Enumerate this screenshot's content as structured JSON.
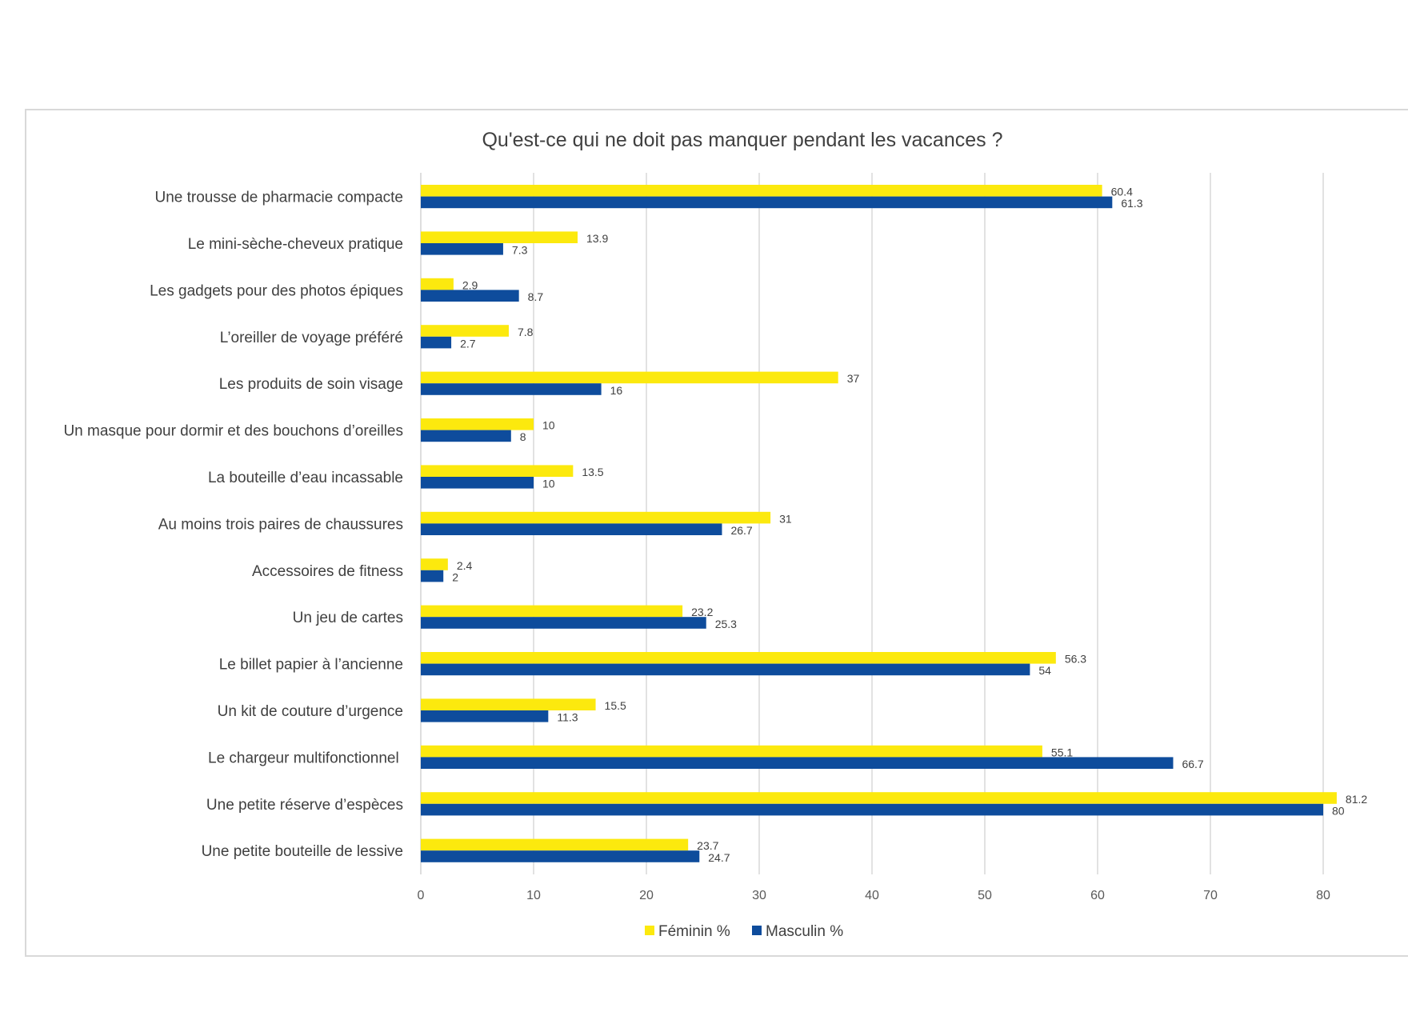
{
  "chart_data": {
    "type": "bar",
    "orientation": "horizontal",
    "title": "Qu'est-ce qui ne doit pas manquer pendant les vacances ?",
    "xlabel": "",
    "ylabel": "",
    "xlim": [
      0,
      80
    ],
    "xticks": [
      "0",
      "10",
      "20",
      "30",
      "40",
      "50",
      "60",
      "70",
      "80"
    ],
    "grid": true,
    "legend_position": "bottom",
    "categories": [
      "Une trousse de pharmacie compacte",
      "Le mini-sèche-cheveux pratique",
      "Les gadgets pour des photos épiques",
      "L’oreiller de voyage préféré",
      "Les produits de soin visage",
      "Un masque pour dormir et des bouchons d’oreilles",
      "La bouteille d’eau incassable",
      "Au moins trois paires de chaussures",
      "Accessoires de fitness",
      "Un jeu de cartes",
      "Le billet papier à l’ancienne",
      "Un kit de couture d’urgence",
      "Le chargeur multifonctionnel ",
      "Une petite réserve d’espèces",
      "Une petite bouteille de lessive"
    ],
    "series": [
      {
        "name": "Féminin %",
        "color": "#FCE90E",
        "values": [
          60.4,
          13.9,
          2.9,
          7.8,
          37,
          10,
          13.5,
          31,
          2.4,
          23.2,
          56.3,
          15.5,
          55.1,
          81.2,
          23.7
        ],
        "labels": [
          "60.4",
          "13.9",
          "2.9",
          "7.8",
          "37",
          "10",
          "13.5",
          "31",
          "2.4",
          "23.2",
          "56.3",
          "15.5",
          "55.1",
          "81.2",
          "23.7"
        ]
      },
      {
        "name": "Masculin %",
        "color": "#0E4C9C",
        "values": [
          61.3,
          7.3,
          8.7,
          2.7,
          16,
          8,
          10,
          26.7,
          2,
          25.3,
          54,
          11.3,
          66.7,
          80,
          24.7
        ],
        "labels": [
          "61.3",
          "7.3",
          "8.7",
          "2.7",
          "16",
          "8",
          "10",
          "26.7",
          "2",
          "25.3",
          "54",
          "11.3",
          "66.7",
          "80",
          "24.7"
        ]
      }
    ]
  }
}
